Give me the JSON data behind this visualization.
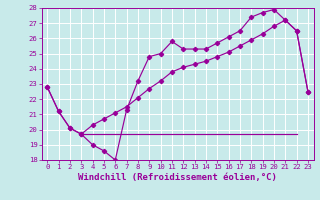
{
  "xlabel": "Windchill (Refroidissement éolien,°C)",
  "x": [
    0,
    1,
    2,
    3,
    4,
    5,
    6,
    7,
    8,
    9,
    10,
    11,
    12,
    13,
    14,
    15,
    16,
    17,
    18,
    19,
    20,
    21,
    22,
    23
  ],
  "line1": [
    22.8,
    21.2,
    20.1,
    19.7,
    19.0,
    18.6,
    18.0,
    21.3,
    23.2,
    24.8,
    25.0,
    25.8,
    25.3,
    25.3,
    25.3,
    25.7,
    26.1,
    26.5,
    27.4,
    27.7,
    27.9,
    27.2,
    26.5,
    22.5
  ],
  "line2": [
    22.8,
    21.2,
    20.1,
    19.7,
    20.3,
    20.7,
    21.1,
    21.5,
    22.1,
    22.7,
    23.2,
    23.8,
    24.1,
    24.3,
    24.5,
    24.8,
    25.1,
    25.5,
    25.9,
    26.3,
    26.8,
    27.2,
    26.5,
    22.5
  ],
  "hline_y": 19.7,
  "hline_x_start": 3,
  "hline_x_end": 22,
  "ylim_min": 18,
  "ylim_max": 28,
  "xlim_min": -0.5,
  "xlim_max": 23.5,
  "yticks": [
    18,
    19,
    20,
    21,
    22,
    23,
    24,
    25,
    26,
    27,
    28
  ],
  "xticks": [
    0,
    1,
    2,
    3,
    4,
    5,
    6,
    7,
    8,
    9,
    10,
    11,
    12,
    13,
    14,
    15,
    16,
    17,
    18,
    19,
    20,
    21,
    22,
    23
  ],
  "line_color": "#990099",
  "bg_color": "#c8eaea",
  "grid_color": "#ffffff",
  "tick_label_color": "#990099",
  "axis_label_color": "#990099",
  "tick_fontsize": 5.2,
  "xlabel_fontsize": 6.5
}
